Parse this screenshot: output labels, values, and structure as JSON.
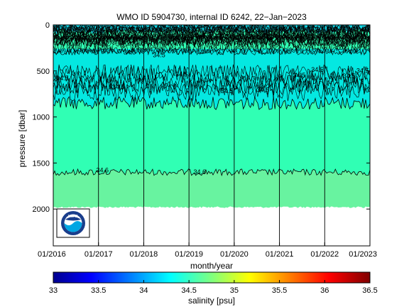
{
  "chart_data": {
    "type": "heatmap",
    "title": "WMO ID 5904730, internal ID 6242, 22−Jan−2023",
    "xlabel": "month/year",
    "ylabel": "pressure [dbar]",
    "x_tick_labels": [
      "01/2016",
      "01/2017",
      "01/2018",
      "01/2019",
      "01/2020",
      "01/2021",
      "01/2022",
      "01/2023"
    ],
    "x_range": [
      "2016-01",
      "2023-01"
    ],
    "y_ticks": [
      0,
      500,
      1000,
      1500,
      2000
    ],
    "y_range": [
      2400,
      0
    ],
    "y_reversed": true,
    "colorbar": {
      "label": "salinity [psu]",
      "ticks": [
        33,
        33.5,
        34,
        34.5,
        35,
        35.5,
        36,
        36.5
      ],
      "tick_labels": [
        "33",
        "33.5",
        "34",
        "34.5",
        "35",
        "35.5",
        "36",
        "36.5"
      ],
      "range": [
        33,
        36.5
      ],
      "colormap": "jet"
    },
    "profile_vertical_lines_at_year_starts": true,
    "contour_label_values": [
      "34.5",
      "34.6"
    ],
    "salinity_layers": [
      {
        "pressure_range": [
          0,
          300
        ],
        "salinity_approx": 34.3,
        "note": "surface layer with dense contours"
      },
      {
        "pressure_range": [
          300,
          900
        ],
        "salinity_approx": 34.45,
        "note": "intermediate lower-salinity layer (~34.4-34.5)"
      },
      {
        "pressure_range": [
          900,
          1600
        ],
        "salinity_approx": 34.55,
        "note": "deep layer"
      },
      {
        "pressure_range": [
          1600,
          1980
        ],
        "salinity_approx": 34.7,
        "note": "bottom layer below the 34.6 contour"
      }
    ],
    "contour_34_6_pressure_approx": 1600,
    "max_profile_depth_approx": 1980
  },
  "logo": {
    "text": "NOAA",
    "colors": {
      "ring": "#1a3e8c",
      "water": "#00a6e3",
      "bird": "#ffffff"
    }
  },
  "colors": {
    "surface": "#00e6e6",
    "mid": "#30ffb4",
    "deep": "#68f3a0",
    "contour": "#000000"
  }
}
